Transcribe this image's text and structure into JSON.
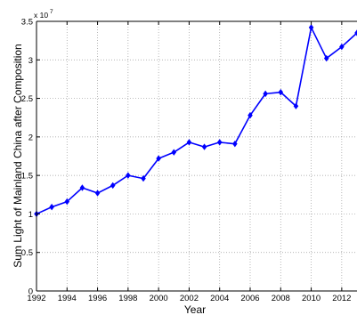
{
  "chart_data": {
    "type": "line",
    "title": "",
    "xlabel": "Year",
    "ylabel": "Sum Light of Mainland China after Composition",
    "y_multiplier_base": "x 10",
    "y_multiplier_exp": "7",
    "xlim": [
      1992,
      2013
    ],
    "ylim": [
      0,
      3.5
    ],
    "x_ticks": [
      1992,
      1994,
      1996,
      1998,
      2000,
      2002,
      2004,
      2006,
      2008,
      2010,
      2012
    ],
    "x_tick_labels": [
      "1992",
      "1994",
      "1996",
      "1998",
      "2000",
      "2002",
      "2004",
      "2006",
      "2008",
      "2010",
      "2012"
    ],
    "y_ticks": [
      0,
      0.5,
      1,
      1.5,
      2,
      2.5,
      3,
      3.5
    ],
    "y_tick_labels": [
      "0",
      "0.5",
      "1",
      "1.5",
      "2",
      "2.5",
      "3",
      "3.5"
    ],
    "grid": true,
    "series": [
      {
        "x": [
          1992,
          1993,
          1994,
          1995,
          1996,
          1997,
          1998,
          1999,
          2000,
          2001,
          2002,
          2003,
          2004,
          2005,
          2006,
          2007,
          2008,
          2009,
          2010,
          2011,
          2012,
          2013
        ],
        "values": [
          1.0,
          1.09,
          1.16,
          1.34,
          1.27,
          1.37,
          1.5,
          1.46,
          1.72,
          1.8,
          1.93,
          1.87,
          1.93,
          1.91,
          2.28,
          2.56,
          2.58,
          2.4,
          3.42,
          3.02,
          3.17,
          3.35
        ],
        "color": "#0000ff",
        "marker": "diamond"
      }
    ]
  }
}
